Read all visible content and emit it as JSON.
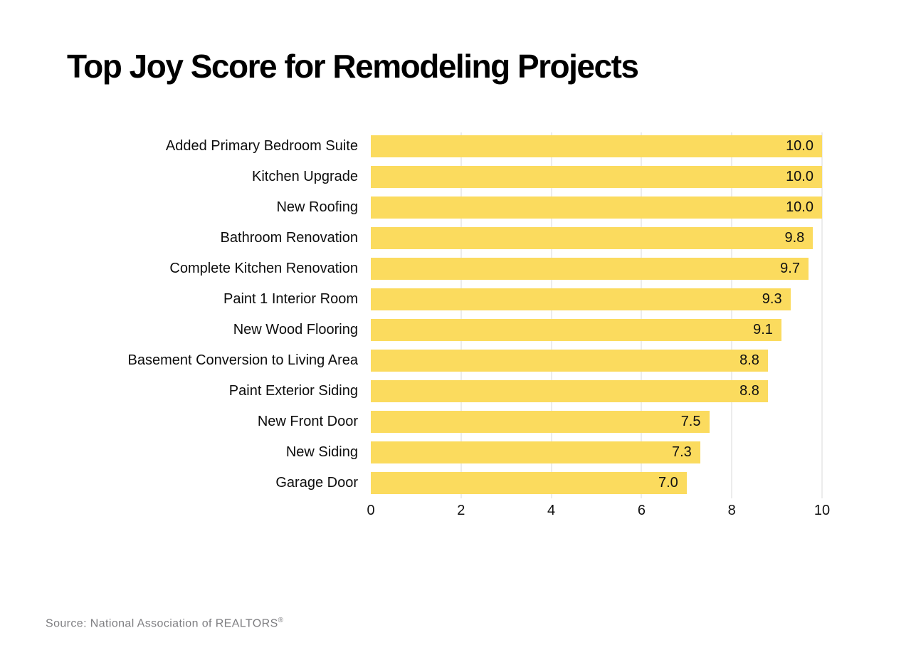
{
  "title": "Top Joy Score for Remodeling Projects",
  "source": {
    "text": "Source: National Association of REALTORS",
    "registered_mark": "®"
  },
  "chart_data": {
    "type": "bar",
    "orientation": "horizontal",
    "title": "Top Joy Score for Remodeling Projects",
    "categories": [
      "Added Primary Bedroom Suite",
      "Kitchen Upgrade",
      "New Roofing",
      "Bathroom Renovation",
      "Complete Kitchen Renovation",
      "Paint 1 Interior Room",
      "New Wood Flooring",
      "Basement Conversion to Living Area",
      "Paint Exterior Siding",
      "New Front Door",
      "New Siding",
      "Garage Door"
    ],
    "values": [
      10.0,
      10.0,
      10.0,
      9.8,
      9.7,
      9.3,
      9.1,
      8.8,
      8.8,
      7.5,
      7.3,
      7.0
    ],
    "value_labels": [
      "10.0",
      "10.0",
      "10.0",
      "9.8",
      "9.7",
      "9.3",
      "9.1",
      "8.8",
      "8.8",
      "7.5",
      "7.3",
      "7.0"
    ],
    "xlabel": "",
    "ylabel": "",
    "xlim": [
      0,
      10
    ],
    "x_ticks": [
      0,
      2,
      4,
      6,
      8,
      10
    ],
    "grid": true,
    "legend": false,
    "bar_color": "#FBDB5E",
    "grid_color": "#DADADA",
    "text_color": "#111111"
  }
}
